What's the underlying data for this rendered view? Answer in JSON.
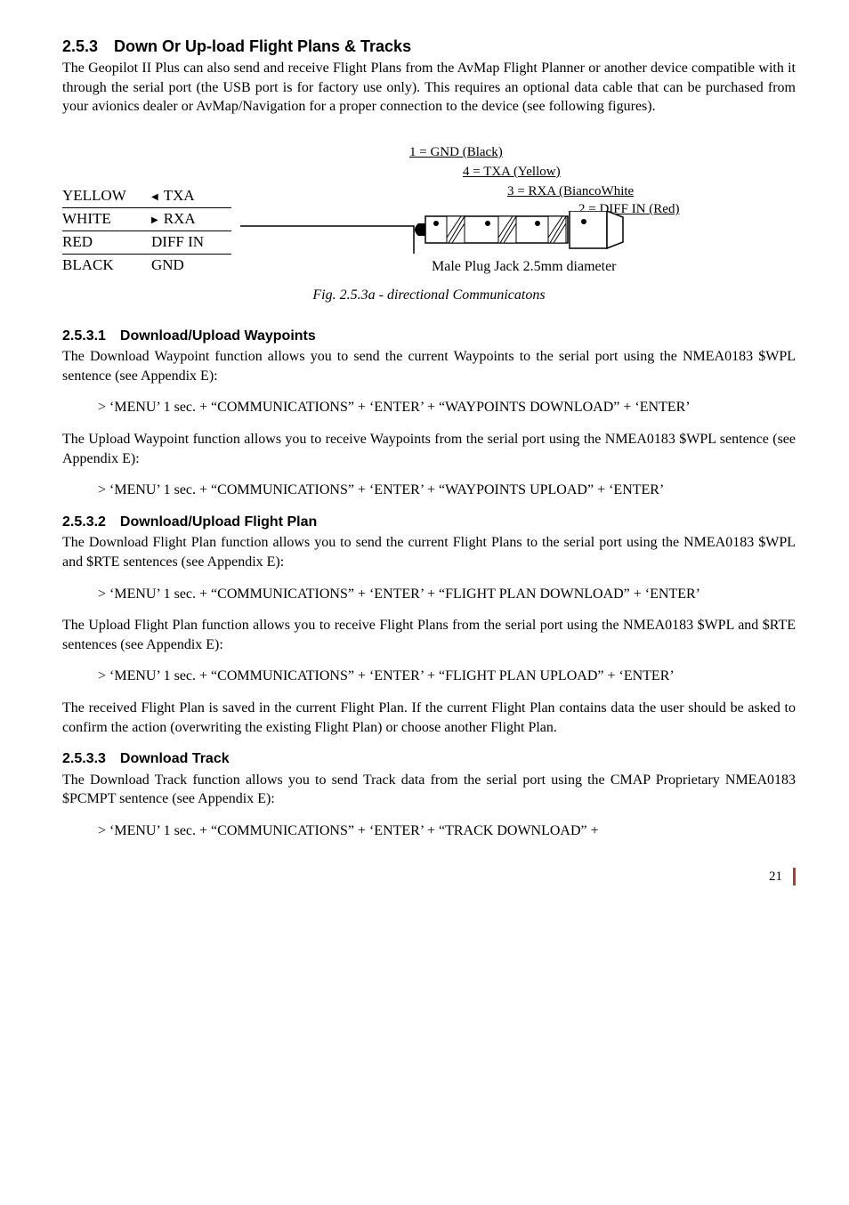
{
  "section253": {
    "heading": "2.5.3 Down Or Up-load Flight Plans & Tracks",
    "para": "The Geopilot II Plus can also send and receive Flight Plans from the AvMap Flight Planner or another device compatible with it through the serial port (the USB port is for factory use only). This requires an optional data cable that can be purchased from your avionics dealer or AvMap/Navigation for a proper connection to the device (see following figures)."
  },
  "figure": {
    "pin_rows": [
      {
        "color": "YELLOW",
        "arrow": "l",
        "signal": "TXA"
      },
      {
        "color": "WHITE",
        "arrow": "r",
        "signal": "RXA"
      },
      {
        "color": "RED",
        "arrow": "",
        "signal": "DIFF IN"
      },
      {
        "color": "BLACK",
        "arrow": "",
        "signal": "GND"
      }
    ],
    "labels": {
      "l1": "1 = GND (Black)",
      "l4": "4 = TXA (Yellow)",
      "l3": "3 = RXA (BiancoWhite",
      "l2": "2 = DIFF IN (Red)"
    },
    "plug_caption": "Male Plug Jack 2.5mm diameter",
    "caption": "Fig. 2.5.3a - directional Communicatons"
  },
  "section2531": {
    "heading": "2.5.3.1 Download/Upload Waypoints",
    "p1": "The Download Waypoint function allows you to send the current Waypoints to the serial port using the NMEA0183 $WPL sentence (see Appendix E):",
    "cmd1": "> ‘MENU’ 1 sec. + “COMMUNICATIONS” + ‘ENTER’ + “WAYPOINTS DOWNLOAD” + ‘ENTER’",
    "p2": "The Upload Waypoint function allows you to receive Waypoints from the serial port using the NMEA0183 $WPL sentence (see Appendix E):",
    "cmd2": "> ‘MENU’ 1 sec. + “COMMUNICATIONS” + ‘ENTER’ + “WAYPOINTS UPLOAD” + ‘ENTER’"
  },
  "section2532": {
    "heading": "2.5.3.2 Download/Upload Flight Plan",
    "p1": "The Download Flight Plan function allows you to send the current Flight Plans to the serial port using the NMEA0183 $WPL and $RTE sentences (see Appendix E):",
    "cmd1": "> ‘MENU’ 1 sec. + “COMMUNICATIONS” + ‘ENTER’ + “FLIGHT PLAN DOWNLOAD” + ‘ENTER’",
    "p2": "The Upload Flight Plan function allows you to receive Flight Plans from the serial port using the NMEA0183 $WPL and $RTE sentences (see Appendix E):",
    "cmd2": "> ‘MENU’ 1 sec. + “COMMUNICATIONS” + ‘ENTER’ + “FLIGHT PLAN UPLOAD” + ‘ENTER’",
    "p3": "The received Flight Plan is saved in the current Flight Plan. If the current Flight Plan contains data the user should be asked to confirm the action (overwriting the existing Flight Plan) or choose another Flight Plan."
  },
  "section2533": {
    "heading": "2.5.3.3 Download Track",
    "p1": "The Download Track function allows you to send Track data from the serial port using the CMAP Proprietary NMEA0183 $PCMPT sentence (see Appendix E):",
    "cmd1": "> ‘MENU’ 1 sec. + “COMMUNICATIONS” + ‘ENTER’ + “TRACK DOWNLOAD” +"
  },
  "page_number": "21"
}
